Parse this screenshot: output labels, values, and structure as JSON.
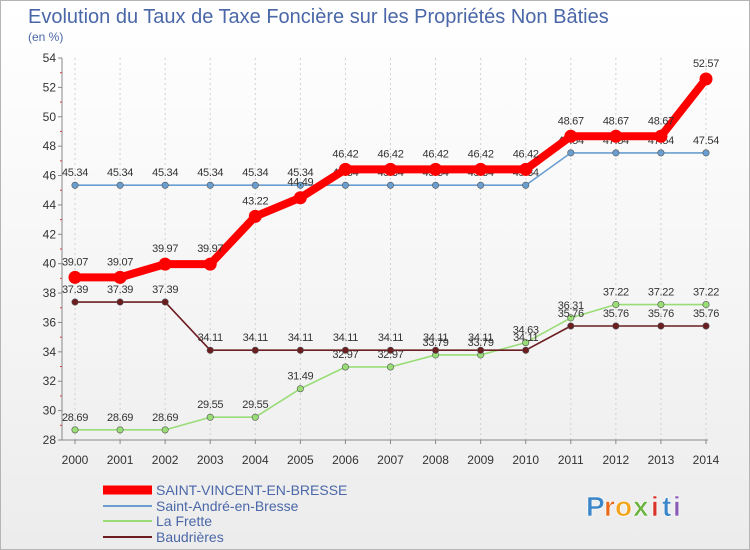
{
  "chart_data": {
    "type": "line",
    "title": "Evolution du Taux de Taxe Foncière sur les Propriétés Non Bâties",
    "subtitle": "(en %)",
    "x": [
      "2000",
      "2001",
      "2002",
      "2003",
      "2004",
      "2005",
      "2006",
      "2007",
      "2008",
      "2009",
      "2010",
      "2011",
      "2012",
      "2013",
      "2014"
    ],
    "ylim": [
      28,
      54
    ],
    "yticks": [
      "28",
      "30",
      "32",
      "34",
      "36",
      "38",
      "40",
      "42",
      "44",
      "46",
      "48",
      "50",
      "52",
      "54"
    ],
    "series": [
      {
        "name": "SAINT-VINCENT-EN-BRESSE",
        "color": "#ff0000",
        "values": [
          39.07,
          39.07,
          39.97,
          39.97,
          43.22,
          44.49,
          46.42,
          46.42,
          46.42,
          46.42,
          46.42,
          48.67,
          48.67,
          48.67,
          52.57
        ],
        "labels": [
          "39.07",
          "39.07",
          "39.97",
          "39.97",
          "43.22",
          "44.49",
          "46.42",
          "46.42",
          "46.42",
          "46.42",
          "46.42",
          "48.67",
          "48.67",
          "48.67",
          "52.57"
        ]
      },
      {
        "name": "Saint-André-en-Bresse",
        "color": "#6a9ed0",
        "values": [
          45.34,
          45.34,
          45.34,
          45.34,
          45.34,
          45.34,
          45.34,
          45.34,
          45.34,
          45.34,
          45.34,
          47.54,
          47.54,
          47.54,
          47.54
        ],
        "labels": [
          "45.34",
          "45.34",
          "45.34",
          "45.34",
          "45.34",
          "45.34",
          "45.34",
          "45.34",
          "45.34",
          "45.34",
          "45.34",
          "47.54",
          "47.54",
          "47.54",
          "47.54"
        ]
      },
      {
        "name": "La Frette",
        "color": "#99dd77",
        "values": [
          28.69,
          28.69,
          28.69,
          29.55,
          29.55,
          31.49,
          32.97,
          32.97,
          33.79,
          33.79,
          34.63,
          36.31,
          37.22,
          37.22,
          37.22
        ],
        "labels": [
          "28.69",
          "28.69",
          "28.69",
          "29.55",
          "29.55",
          "31.49",
          "32.97",
          "32.97",
          "33.79",
          "33.79",
          "34.63",
          "36.31",
          "37.22",
          "37.22",
          "37.22"
        ]
      },
      {
        "name": "Baudrières",
        "color": "#6b1d20",
        "values": [
          37.39,
          37.39,
          37.39,
          34.11,
          34.11,
          34.11,
          34.11,
          34.11,
          34.11,
          34.11,
          34.11,
          35.76,
          35.76,
          35.76,
          35.76
        ],
        "labels": [
          "37.39",
          "37.39",
          "37.39",
          "34.11",
          "34.11",
          "34.11",
          "34.11",
          "34.11",
          "34.11",
          "34.11",
          "34.11",
          "35.76",
          "35.76",
          "35.76",
          "35.76"
        ]
      }
    ]
  },
  "logo": {
    "letters": [
      "P",
      "r",
      "o",
      "x",
      "i",
      "t",
      "i"
    ],
    "colors": [
      "#3a86c8",
      "#e86a1a",
      "#f2a51c",
      "#6cb33f",
      "#d9342b",
      "#3a86c8",
      "#8a5bb5"
    ]
  }
}
